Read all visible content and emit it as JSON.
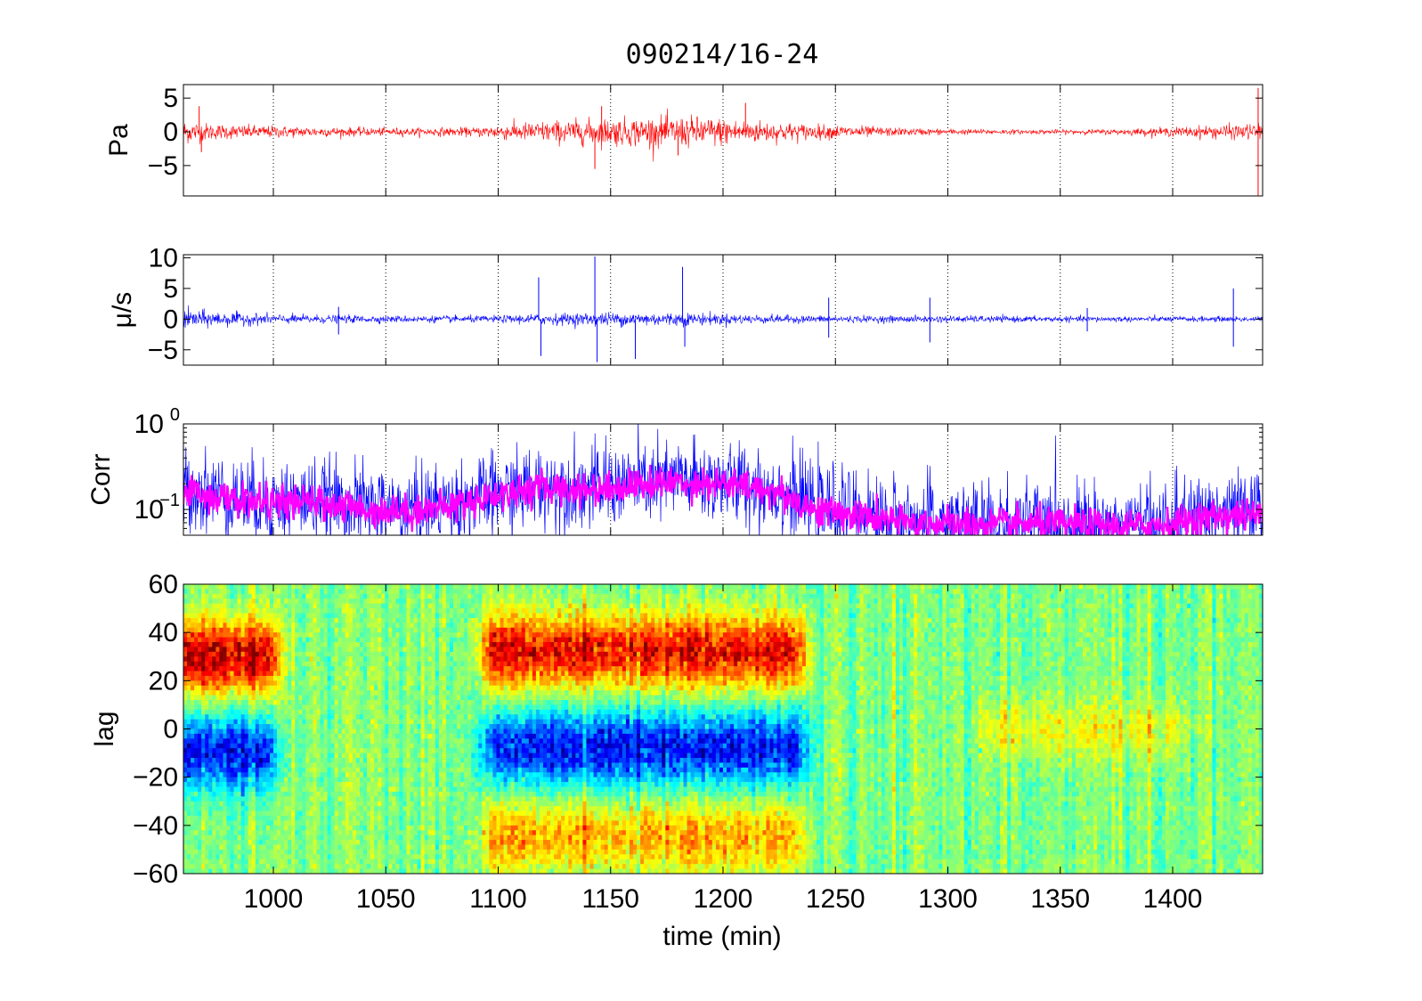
{
  "chart_data": {
    "title": "090214/16-24",
    "xlabel": "time (min)",
    "xlim": [
      960,
      1440
    ],
    "xticks": [
      "1000",
      "1050",
      "1100",
      "1150",
      "1200",
      "1250",
      "1300",
      "1350",
      "1400"
    ],
    "xtick_values": [
      1000,
      1050,
      1100,
      1150,
      1200,
      1250,
      1300,
      1350,
      1400
    ],
    "grid": "vertical dotted lines at x ticks (panels 1-3)",
    "panels": [
      {
        "type": "line",
        "ylabel": "Pa",
        "ylim": [
          -9.5,
          7
        ],
        "yticks": [
          {
            "value": 5,
            "label": "5"
          },
          {
            "value": 0,
            "label": "0"
          },
          {
            "value": -5,
            "label": "-5"
          }
        ],
        "series": [
          {
            "color": "#ff0000",
            "note": "pressure trace",
            "amplitude_envelope": {
              "x": [
                960,
                975,
                1000,
                1030,
                1060,
                1090,
                1100,
                1120,
                1140,
                1150,
                1170,
                1190,
                1200,
                1220,
                1240,
                1260,
                1280,
                1300,
                1330,
                1360,
                1380,
                1400,
                1420,
                1440
              ],
              "amp": [
                1.6,
                1.0,
                0.8,
                0.6,
                0.5,
                0.6,
                1.0,
                1.4,
                1.7,
                1.8,
                2.0,
                2.0,
                1.8,
                1.4,
                1.0,
                0.8,
                0.5,
                0.4,
                0.3,
                0.3,
                0.4,
                0.6,
                0.9,
                1.1
              ]
            },
            "spikes": [
              {
                "x": 967,
                "y": 3.8
              },
              {
                "x": 968,
                "y": -3.0
              },
              {
                "x": 1143,
                "y": -5.5
              },
              {
                "x": 1146,
                "y": 3.8
              },
              {
                "x": 1180,
                "y": -3.5
              },
              {
                "x": 1210,
                "y": 4.3
              },
              {
                "x": 1438,
                "y": 6.5
              },
              {
                "x": 1438,
                "y": -9.5
              }
            ]
          }
        ]
      },
      {
        "type": "line",
        "ylabel": "μ/s",
        "ylim": [
          -7.5,
          10.5
        ],
        "yticks": [
          {
            "value": 10,
            "label": "10"
          },
          {
            "value": 5,
            "label": "5"
          },
          {
            "value": 0,
            "label": "0"
          },
          {
            "value": -5,
            "label": "-5"
          }
        ],
        "series": [
          {
            "color": "#0000ff",
            "note": "velocity trace",
            "amplitude_envelope": {
              "x": [
                960,
                970,
                1000,
                1050,
                1100,
                1120,
                1150,
                1180,
                1200,
                1220,
                1250,
                1300,
                1350,
                1400,
                1440
              ],
              "amp": [
                1.6,
                1.2,
                0.7,
                0.5,
                0.5,
                0.8,
                1.0,
                1.0,
                0.8,
                0.6,
                0.5,
                0.5,
                0.4,
                0.4,
                0.4
              ]
            },
            "spikes": [
              {
                "x": 1029,
                "y": 2.0
              },
              {
                "x": 1029,
                "y": -2.5
              },
              {
                "x": 1118,
                "y": 6.8
              },
              {
                "x": 1119,
                "y": -6.0
              },
              {
                "x": 1143,
                "y": 10.2
              },
              {
                "x": 1144,
                "y": -7.0
              },
              {
                "x": 1161,
                "y": -6.5
              },
              {
                "x": 1182,
                "y": 8.5
              },
              {
                "x": 1183,
                "y": -4.5
              },
              {
                "x": 1247,
                "y": 3.5
              },
              {
                "x": 1247,
                "y": -3.0
              },
              {
                "x": 1292,
                "y": 3.5
              },
              {
                "x": 1292,
                "y": -3.8
              },
              {
                "x": 1362,
                "y": 1.8
              },
              {
                "x": 1362,
                "y": -2.0
              },
              {
                "x": 1427,
                "y": 5.0
              },
              {
                "x": 1427,
                "y": -4.5
              }
            ]
          }
        ]
      },
      {
        "type": "line",
        "ylabel": "Corr",
        "yscale": "log",
        "ylim": [
          0.05,
          1
        ],
        "yticks": [
          {
            "value": 1,
            "label": "10",
            "exponent": "0"
          },
          {
            "value": 0.1,
            "label": "10",
            "exponent": "−1"
          }
        ],
        "series": [
          {
            "color": "#0000ff",
            "note": "instantaneous correlation (noisy)",
            "x": [
              960,
              980,
              1000,
              1020,
              1040,
              1060,
              1080,
              1100,
              1120,
              1140,
              1160,
              1180,
              1200,
              1220,
              1240,
              1260,
              1280,
              1300,
              1320,
              1340,
              1360,
              1380,
              1400,
              1420,
              1440
            ],
            "y": [
              0.18,
              0.14,
              0.12,
              0.13,
              0.11,
              0.1,
              0.12,
              0.15,
              0.19,
              0.18,
              0.2,
              0.22,
              0.21,
              0.18,
              0.11,
              0.09,
              0.075,
              0.07,
              0.068,
              0.07,
              0.068,
              0.065,
              0.07,
              0.09,
              0.09
            ]
          },
          {
            "color": "#ff00ff",
            "note": "smoothed correlation band",
            "x": [
              960,
              980,
              1000,
              1020,
              1040,
              1060,
              1080,
              1100,
              1120,
              1140,
              1160,
              1180,
              1200,
              1220,
              1240,
              1260,
              1280,
              1300,
              1320,
              1340,
              1360,
              1380,
              1400,
              1420,
              1440
            ],
            "y": [
              0.17,
              0.13,
              0.12,
              0.12,
              0.1,
              0.095,
              0.11,
              0.15,
              0.18,
              0.17,
              0.19,
              0.21,
              0.2,
              0.17,
              0.1,
              0.085,
              0.07,
              0.068,
              0.066,
              0.068,
              0.066,
              0.063,
              0.068,
              0.085,
              0.085
            ]
          }
        ]
      },
      {
        "type": "heatmap",
        "ylabel": "lag",
        "ylim": [
          -60,
          60
        ],
        "yticks": [
          {
            "value": 60,
            "label": "60"
          },
          {
            "value": 40,
            "label": "40"
          },
          {
            "value": 20,
            "label": "20"
          },
          {
            "value": 0,
            "label": "0"
          },
          {
            "value": -20,
            "label": "-20"
          },
          {
            "value": -40,
            "label": "-40"
          },
          {
            "value": -60,
            "label": "-60"
          }
        ],
        "colormap": "jet",
        "features": [
          {
            "x_range": [
              960,
              995
            ],
            "lag_center": 30,
            "sign": "positive",
            "strength": 0.95
          },
          {
            "x_range": [
              960,
              995
            ],
            "lag_center": -10,
            "sign": "negative",
            "strength": 0.8
          },
          {
            "x_range": [
              1100,
              1230
            ],
            "lag_center": 32,
            "sign": "positive",
            "strength": 0.85
          },
          {
            "x_range": [
              1100,
              1230
            ],
            "lag_center": -8,
            "sign": "negative",
            "strength": 0.8
          },
          {
            "x_range": [
              1100,
              1230
            ],
            "lag_center": -45,
            "sign": "positive",
            "strength": 0.45
          },
          {
            "x_range": [
              1320,
              1400
            ],
            "lag_center": 0,
            "sign": "positive",
            "strength": 0.25
          }
        ]
      }
    ]
  }
}
